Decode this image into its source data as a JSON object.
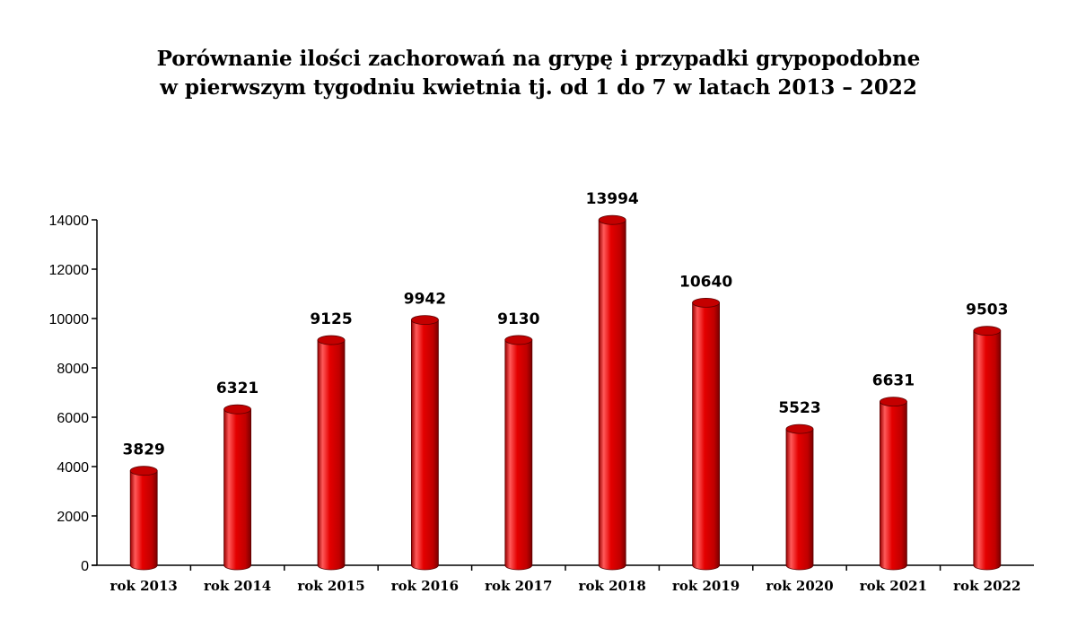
{
  "chart_data": {
    "type": "bar",
    "title_lines": [
      "Porównanie ilości zachorowań na grypę i przypadki grypopodobne",
      "w pierwszym tygodniu kwietnia tj. od 1 do 7 w latach 2013 – 2022"
    ],
    "categories": [
      "rok 2013",
      "rok 2014",
      "rok 2015",
      "rok 2016",
      "rok 2017",
      "rok 2018",
      "rok 2019",
      "rok 2020",
      "rok 2021",
      "rok 2022"
    ],
    "values": [
      3829,
      6321,
      9125,
      9942,
      9130,
      13994,
      10640,
      5523,
      6631,
      9503
    ],
    "data_labels": [
      "3829",
      "6321",
      "9125",
      "9942",
      "9130",
      "13994",
      "10640",
      "5523",
      "6631",
      "9503"
    ],
    "ylim": [
      0,
      14000
    ],
    "yticks": [
      0,
      2000,
      4000,
      6000,
      8000,
      10000,
      12000,
      14000
    ],
    "ytick_labels": [
      "0",
      "2000",
      "4000",
      "6000",
      "8000",
      "10000",
      "12000",
      "14000"
    ],
    "grid": false,
    "bar_color": "#e00000",
    "bar_highlight": "#ff6a6a",
    "bar_shadow": "#8a0000",
    "bar_top_color": "#c40000"
  }
}
